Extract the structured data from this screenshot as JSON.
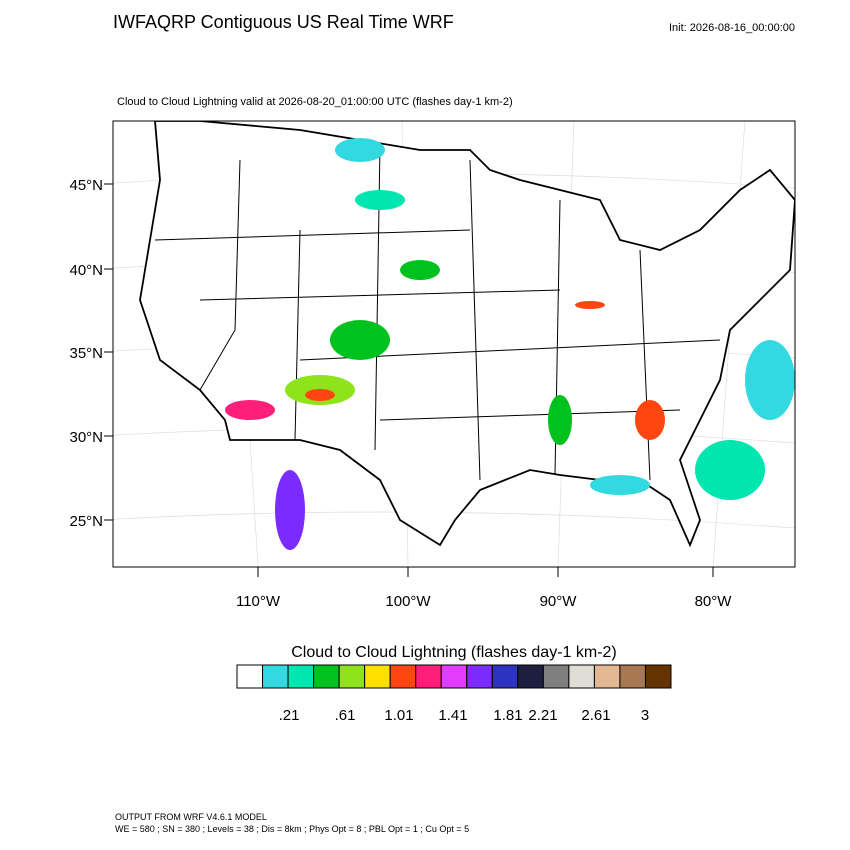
{
  "title": "IWFAQRP Contiguous US Real Time WRF",
  "init": "Init: 2026-08-16_00:00:00",
  "subtitle": "Cloud to Cloud Lightning valid at 2026-08-20_01:00:00 UTC   (flashes day-1 km-2)",
  "lat_labels": [
    "45°N",
    "40°N",
    "35°N",
    "30°N",
    "25°N"
  ],
  "lon_labels": [
    "110°W",
    "100°W",
    "90°W",
    "80°W"
  ],
  "colorbar": {
    "title": "Cloud to Cloud Lightning  (flashes day-1 km-2)",
    "colors": [
      "#ffffff",
      "#33d9e0",
      "#00e6b0",
      "#00c21e",
      "#8ee31a",
      "#ffe000",
      "#ff4510",
      "#ff1f7a",
      "#e33cff",
      "#7a2cff",
      "#2e32c0",
      "#1e1e40",
      "#7f7f7f",
      "#e0ddd6",
      "#e3b892",
      "#aa7850",
      "#663300"
    ],
    "labels": [
      ".21",
      ".61",
      "1.01",
      "1.41",
      "1.81",
      "2.21",
      "2.61",
      "3"
    ]
  },
  "footer": [
    "OUTPUT FROM WRF V4.6.1 MODEL",
    "WE = 580 ; SN = 380 ; Levels = 38 ; Dis = 8km ; Phys Opt = 8 ; PBL Opt = 1 ; Cu Opt = 5"
  ]
}
